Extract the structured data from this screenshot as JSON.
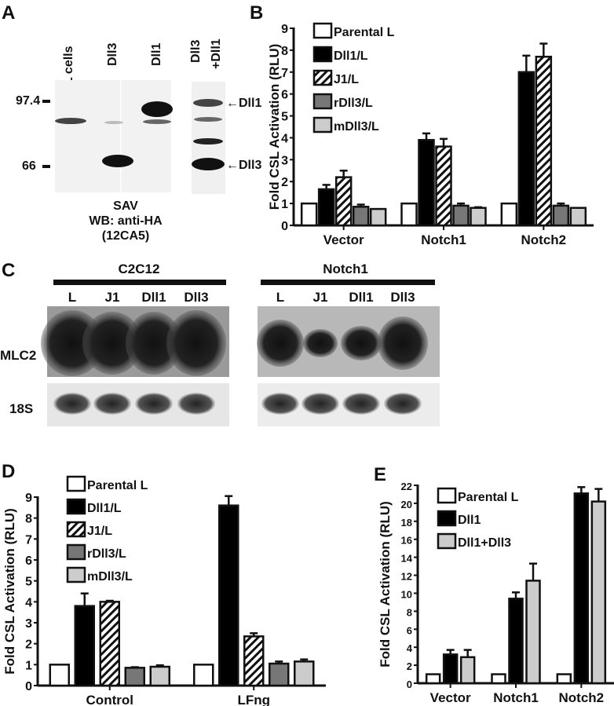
{
  "panels": {
    "A": {
      "label": "A",
      "lanes": [
        "L cells",
        "Dll3",
        "Dll1",
        "Dll3\n+Dll1"
      ],
      "lane_line1": [
        "L cells",
        "Dll3",
        "Dll1",
        "Dll3"
      ],
      "lane_line2": "+Dll1",
      "markers": [
        "97.4",
        "66"
      ],
      "band_labels": [
        "←Dll1",
        "←Dll3"
      ],
      "caption": [
        "SAV",
        "WB: anti-HA",
        "(12CA5)"
      ]
    },
    "B": {
      "label": "B"
    },
    "C": {
      "label": "C",
      "groups": [
        "C2C12",
        "Notch1"
      ],
      "lanes": [
        "L",
        "J1",
        "Dll1",
        "Dll3"
      ],
      "rows": [
        "MLC2",
        "18S"
      ]
    },
    "D": {
      "label": "D"
    },
    "E": {
      "label": "E"
    }
  },
  "chart_data": [
    {
      "id": "B",
      "type": "bar",
      "ylabel": "Fold CSL Activation (RLU)",
      "ylim": [
        0,
        9
      ],
      "yticks": [
        "0",
        "1",
        "2",
        "3",
        "4",
        "5",
        "6",
        "7",
        "8",
        "9"
      ],
      "categories": [
        "Vector",
        "Notch1",
        "Notch2"
      ],
      "legend_position": "top-left",
      "series": [
        {
          "name": "Parental L",
          "fill": "white",
          "values": [
            1,
            1,
            1
          ],
          "errors": [
            0,
            0,
            0
          ]
        },
        {
          "name": "Dll1/L",
          "fill": "black",
          "values": [
            1.65,
            3.9,
            7.0
          ],
          "errors": [
            0.2,
            0.3,
            0.75
          ]
        },
        {
          "name": "J1/L",
          "fill": "hatch",
          "values": [
            2.2,
            3.6,
            7.7
          ],
          "errors": [
            0.3,
            0.35,
            0.6
          ]
        },
        {
          "name": "rDll3/L",
          "fill": "#777777",
          "values": [
            0.85,
            0.9,
            0.9
          ],
          "errors": [
            0.1,
            0.1,
            0.1
          ]
        },
        {
          "name": "mDll3/L",
          "fill": "#cccccc",
          "values": [
            0.75,
            0.8,
            0.8
          ],
          "errors": [
            0,
            0.03,
            0
          ]
        }
      ]
    },
    {
      "id": "D",
      "type": "bar",
      "ylabel": "Fold CSL Activation (RLU)",
      "ylim": [
        0,
        9
      ],
      "yticks": [
        "0",
        "1",
        "2",
        "3",
        "4",
        "5",
        "6",
        "7",
        "8",
        "9"
      ],
      "categories": [
        "Control",
        "LFng"
      ],
      "legend_position": "top-left",
      "series": [
        {
          "name": "Parental L",
          "fill": "white",
          "values": [
            1,
            1
          ],
          "errors": [
            0,
            0
          ]
        },
        {
          "name": "Dll1/L",
          "fill": "black",
          "values": [
            3.8,
            8.6
          ],
          "errors": [
            0.6,
            0.45
          ]
        },
        {
          "name": "J1/L",
          "fill": "hatch",
          "values": [
            4.0,
            2.35
          ],
          "errors": [
            0.05,
            0.15
          ]
        },
        {
          "name": "rDll3/L",
          "fill": "#777777",
          "values": [
            0.85,
            1.05
          ],
          "errors": [
            0.03,
            0.1
          ]
        },
        {
          "name": "mDll3/L",
          "fill": "#cccccc",
          "values": [
            0.9,
            1.15
          ],
          "errors": [
            0.07,
            0.1
          ]
        }
      ]
    },
    {
      "id": "E",
      "type": "bar",
      "ylabel": "Fold CSL Activation (RLU)",
      "ylim": [
        0,
        22
      ],
      "yticks": [
        "0",
        "2",
        "4",
        "6",
        "8",
        "10",
        "12",
        "14",
        "16",
        "18",
        "20",
        "22"
      ],
      "categories": [
        "Vector",
        "Notch1",
        "Notch2"
      ],
      "legend_position": "top-left",
      "series": [
        {
          "name": "Parental L",
          "fill": "white",
          "values": [
            1,
            1,
            1
          ],
          "errors": [
            0,
            0,
            0
          ]
        },
        {
          "name": "Dll1",
          "fill": "black",
          "values": [
            3.2,
            9.4,
            21.1
          ],
          "errors": [
            0.5,
            0.7,
            0.7
          ]
        },
        {
          "name": "Dll1+Dll3",
          "fill": "#cccccc",
          "values": [
            2.9,
            11.4,
            20.2
          ],
          "errors": [
            0.8,
            1.9,
            1.4
          ]
        }
      ]
    }
  ]
}
